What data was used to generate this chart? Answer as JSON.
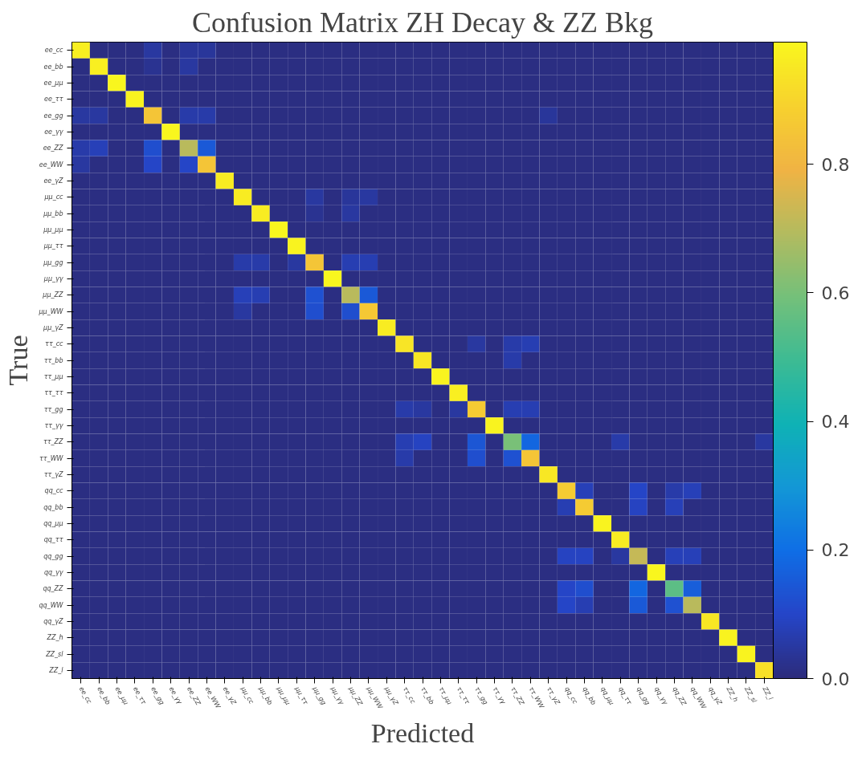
{
  "chart_data": {
    "type": "heatmap",
    "title": "Confusion Matrix ZH Decay & ZZ Bkg",
    "xlabel": "Predicted",
    "ylabel": "True",
    "categories": [
      "ee_cc",
      "ee_bb",
      "ee_μμ",
      "ee_ττ",
      "ee_gg",
      "ee_γγ",
      "ee_ZZ",
      "ee_WW",
      "ee_γZ",
      "μμ_cc",
      "μμ_bb",
      "μμ_μμ",
      "μμ_ττ",
      "μμ_gg",
      "μμ_γγ",
      "μμ_ZZ",
      "μμ_WW",
      "μμ_γZ",
      "ττ_cc",
      "ττ_bb",
      "ττ_μμ",
      "ττ_ττ",
      "ττ_gg",
      "ττ_γγ",
      "ττ_ZZ",
      "ττ_WW",
      "ττ_γZ",
      "qq_cc",
      "qq_bb",
      "qq_μμ",
      "qq_ττ",
      "qq_gg",
      "qq_γγ",
      "qq_ZZ",
      "qq_WW",
      "qq_γZ",
      "ZZ_h",
      "ZZ_sl",
      "ZZ_l"
    ],
    "y_categories": [
      "ee_cc",
      "ee_bb",
      "ee_μμ",
      "ee_ττ",
      "ee_gg",
      "ee_γγ",
      "ee_ZZ",
      "ee_WW",
      "ee_γZ",
      "μμ_cc",
      "μμ_bb",
      "μμ_μμ",
      "μμ_ττ",
      "μμ_gg",
      "μμ_γγ",
      "μμ_ZZ",
      "μμ_WW",
      "μμ_γZ",
      "ττ_cc",
      "ττ_bb",
      "ττ_μμ",
      "ττ_ττ",
      "ττ_gg",
      "ττ_γγ",
      "ττ_ZZ",
      "ττ_WW",
      "ττ_γZ",
      "qq_cc",
      "qq_bb",
      "qq_μμ",
      "qq_ττ",
      "qq_gg",
      "qq_γγ",
      "qq_ZZ",
      "qq_WW",
      "qq_γZ",
      "ZZ_h",
      "ZZ_sl",
      "ZZ_l"
    ],
    "clim": [
      0,
      0.99
    ],
    "cticks": [
      {
        "value": 0,
        "label": "0.0"
      },
      0.2,
      0.4,
      0.6,
      0.8
    ],
    "cells": [
      [
        0.97,
        0.01,
        0.01,
        0.01,
        0.05,
        0.01,
        0.04,
        0.04,
        0.01,
        0.01,
        0.01,
        0.01,
        0.01,
        0.01,
        0.01,
        0.01,
        0.01,
        0.01,
        0.01,
        0.01,
        0.01,
        0.01,
        0.01,
        0.01,
        0.01,
        0.01,
        0.01,
        0.01,
        0.01,
        0.01,
        0.01,
        0.01,
        0.01,
        0.01,
        0.01,
        0.01,
        0.01,
        0.01,
        0.01
      ],
      [
        0.01,
        0.97,
        0.01,
        0.01,
        0.03,
        0.01,
        0.05,
        0.01,
        0.01,
        0.01,
        0.01,
        0.01,
        0.01,
        0.01,
        0.01,
        0.01,
        0.01,
        0.01,
        0.01,
        0.01,
        0.01,
        0.01,
        0.01,
        0.01,
        0.01,
        0.01,
        0.01,
        0.01,
        0.01,
        0.01,
        0.01,
        0.01,
        0.01,
        0.01,
        0.01,
        0.01,
        0.01,
        0.01,
        0.01
      ],
      [
        0.01,
        0.01,
        0.99,
        0.01,
        0.01,
        0.01,
        0.01,
        0.01,
        0.01,
        0.01,
        0.01,
        0.01,
        0.01,
        0.01,
        0.01,
        0.01,
        0.01,
        0.01,
        0.01,
        0.01,
        0.01,
        0.01,
        0.01,
        0.01,
        0.01,
        0.01,
        0.01,
        0.01,
        0.01,
        0.01,
        0.01,
        0.01,
        0.01,
        0.01,
        0.01,
        0.01,
        0.01,
        0.01,
        0.01
      ],
      [
        0.01,
        0.01,
        0.01,
        0.98,
        0.01,
        0.01,
        0.01,
        0.01,
        0.01,
        0.01,
        0.01,
        0.01,
        0.01,
        0.01,
        0.01,
        0.01,
        0.01,
        0.01,
        0.01,
        0.01,
        0.01,
        0.01,
        0.01,
        0.01,
        0.01,
        0.01,
        0.01,
        0.01,
        0.01,
        0.01,
        0.01,
        0.01,
        0.01,
        0.01,
        0.01,
        0.01,
        0.01,
        0.01,
        0.01
      ],
      [
        0.05,
        0.05,
        0.01,
        0.01,
        0.85,
        0.01,
        0.06,
        0.06,
        0.01,
        0.01,
        0.01,
        0.01,
        0.01,
        0.01,
        0.01,
        0.01,
        0.01,
        0.01,
        0.01,
        0.01,
        0.01,
        0.01,
        0.01,
        0.01,
        0.01,
        0.01,
        0.04,
        0.01,
        0.01,
        0.01,
        0.01,
        0.01,
        0.01,
        0.01,
        0.01,
        0.01,
        0.01,
        0.01,
        0.01
      ],
      [
        0.01,
        0.01,
        0.01,
        0.01,
        0.01,
        0.99,
        0.01,
        0.01,
        0.01,
        0.01,
        0.01,
        0.01,
        0.01,
        0.01,
        0.01,
        0.01,
        0.01,
        0.01,
        0.01,
        0.01,
        0.01,
        0.01,
        0.01,
        0.01,
        0.01,
        0.01,
        0.01,
        0.01,
        0.01,
        0.01,
        0.01,
        0.01,
        0.01,
        0.01,
        0.01,
        0.01,
        0.01,
        0.01,
        0.01
      ],
      [
        0.06,
        0.08,
        0.01,
        0.01,
        0.12,
        0.01,
        0.7,
        0.15,
        0.01,
        0.01,
        0.01,
        0.01,
        0.01,
        0.01,
        0.01,
        0.01,
        0.01,
        0.01,
        0.01,
        0.01,
        0.01,
        0.01,
        0.01,
        0.01,
        0.01,
        0.01,
        0.01,
        0.01,
        0.01,
        0.01,
        0.01,
        0.01,
        0.01,
        0.01,
        0.01,
        0.01,
        0.01,
        0.01,
        0.01
      ],
      [
        0.05,
        0.01,
        0.01,
        0.01,
        0.1,
        0.01,
        0.1,
        0.85,
        0.01,
        0.01,
        0.01,
        0.01,
        0.01,
        0.01,
        0.01,
        0.01,
        0.01,
        0.01,
        0.01,
        0.01,
        0.01,
        0.01,
        0.01,
        0.01,
        0.01,
        0.01,
        0.01,
        0.01,
        0.01,
        0.01,
        0.01,
        0.01,
        0.01,
        0.01,
        0.01,
        0.01,
        0.01,
        0.01,
        0.01
      ],
      [
        0.01,
        0.01,
        0.01,
        0.01,
        0.01,
        0.01,
        0.01,
        0.01,
        0.96,
        0.01,
        0.01,
        0.01,
        0.01,
        0.01,
        0.01,
        0.01,
        0.01,
        0.01,
        0.01,
        0.01,
        0.01,
        0.01,
        0.01,
        0.01,
        0.01,
        0.01,
        0.01,
        0.01,
        0.01,
        0.01,
        0.01,
        0.01,
        0.01,
        0.01,
        0.01,
        0.01,
        0.01,
        0.01,
        0.01
      ],
      [
        0.01,
        0.01,
        0.01,
        0.01,
        0.01,
        0.01,
        0.01,
        0.01,
        0.01,
        0.96,
        0.01,
        0.01,
        0.01,
        0.05,
        0.01,
        0.04,
        0.05,
        0.01,
        0.01,
        0.01,
        0.01,
        0.01,
        0.01,
        0.01,
        0.01,
        0.01,
        0.01,
        0.01,
        0.01,
        0.01,
        0.01,
        0.01,
        0.01,
        0.01,
        0.01,
        0.01,
        0.01,
        0.01,
        0.01
      ],
      [
        0.01,
        0.01,
        0.01,
        0.01,
        0.01,
        0.01,
        0.01,
        0.01,
        0.01,
        0.01,
        0.96,
        0.01,
        0.01,
        0.03,
        0.01,
        0.05,
        0.01,
        0.01,
        0.01,
        0.01,
        0.01,
        0.01,
        0.01,
        0.01,
        0.01,
        0.01,
        0.01,
        0.01,
        0.01,
        0.01,
        0.01,
        0.01,
        0.01,
        0.01,
        0.01,
        0.01,
        0.01,
        0.01,
        0.01
      ],
      [
        0.01,
        0.01,
        0.01,
        0.01,
        0.01,
        0.01,
        0.01,
        0.01,
        0.01,
        0.01,
        0.01,
        0.99,
        0.01,
        0.01,
        0.01,
        0.01,
        0.01,
        0.01,
        0.01,
        0.01,
        0.01,
        0.01,
        0.01,
        0.01,
        0.01,
        0.01,
        0.01,
        0.01,
        0.01,
        0.01,
        0.01,
        0.01,
        0.01,
        0.01,
        0.01,
        0.01,
        0.01,
        0.01,
        0.01
      ],
      [
        0.01,
        0.01,
        0.01,
        0.01,
        0.01,
        0.01,
        0.01,
        0.01,
        0.01,
        0.01,
        0.01,
        0.01,
        0.98,
        0.01,
        0.01,
        0.01,
        0.01,
        0.01,
        0.01,
        0.01,
        0.01,
        0.01,
        0.01,
        0.01,
        0.01,
        0.01,
        0.01,
        0.01,
        0.01,
        0.01,
        0.01,
        0.01,
        0.01,
        0.01,
        0.01,
        0.01,
        0.01,
        0.01,
        0.01
      ],
      [
        0.01,
        0.01,
        0.01,
        0.01,
        0.01,
        0.01,
        0.01,
        0.01,
        0.01,
        0.06,
        0.06,
        0.01,
        0.05,
        0.85,
        0.01,
        0.07,
        0.07,
        0.01,
        0.01,
        0.01,
        0.01,
        0.01,
        0.01,
        0.01,
        0.01,
        0.01,
        0.01,
        0.01,
        0.01,
        0.01,
        0.01,
        0.01,
        0.01,
        0.01,
        0.01,
        0.01,
        0.01,
        0.01,
        0.01
      ],
      [
        0.01,
        0.01,
        0.01,
        0.01,
        0.01,
        0.01,
        0.01,
        0.01,
        0.01,
        0.01,
        0.01,
        0.01,
        0.01,
        0.01,
        0.99,
        0.01,
        0.01,
        0.01,
        0.01,
        0.01,
        0.01,
        0.01,
        0.01,
        0.01,
        0.01,
        0.01,
        0.01,
        0.01,
        0.01,
        0.01,
        0.01,
        0.01,
        0.01,
        0.01,
        0.01,
        0.01,
        0.01,
        0.01,
        0.01
      ],
      [
        0.01,
        0.01,
        0.01,
        0.01,
        0.01,
        0.01,
        0.01,
        0.01,
        0.01,
        0.08,
        0.07,
        0.01,
        0.01,
        0.13,
        0.01,
        0.7,
        0.15,
        0.01,
        0.01,
        0.01,
        0.01,
        0.01,
        0.01,
        0.01,
        0.01,
        0.01,
        0.01,
        0.01,
        0.01,
        0.01,
        0.01,
        0.01,
        0.01,
        0.01,
        0.01,
        0.01,
        0.01,
        0.01,
        0.01
      ],
      [
        0.01,
        0.01,
        0.01,
        0.01,
        0.01,
        0.01,
        0.01,
        0.01,
        0.01,
        0.05,
        0.01,
        0.01,
        0.01,
        0.12,
        0.01,
        0.12,
        0.86,
        0.01,
        0.01,
        0.01,
        0.01,
        0.01,
        0.01,
        0.01,
        0.01,
        0.01,
        0.01,
        0.01,
        0.01,
        0.01,
        0.01,
        0.01,
        0.01,
        0.01,
        0.01,
        0.01,
        0.01,
        0.01,
        0.01
      ],
      [
        0.01,
        0.01,
        0.01,
        0.01,
        0.01,
        0.01,
        0.01,
        0.01,
        0.01,
        0.01,
        0.01,
        0.01,
        0.01,
        0.01,
        0.01,
        0.01,
        0.01,
        0.96,
        0.01,
        0.01,
        0.01,
        0.01,
        0.01,
        0.01,
        0.01,
        0.01,
        0.01,
        0.01,
        0.01,
        0.01,
        0.01,
        0.01,
        0.01,
        0.01,
        0.01,
        0.01,
        0.01,
        0.01,
        0.01
      ],
      [
        0.01,
        0.01,
        0.01,
        0.01,
        0.01,
        0.01,
        0.01,
        0.01,
        0.01,
        0.01,
        0.01,
        0.01,
        0.01,
        0.01,
        0.01,
        0.01,
        0.01,
        0.01,
        0.94,
        0.01,
        0.01,
        0.01,
        0.05,
        0.01,
        0.06,
        0.07,
        0.01,
        0.01,
        0.01,
        0.01,
        0.01,
        0.01,
        0.01,
        0.01,
        0.01,
        0.01,
        0.01,
        0.01,
        0.01
      ],
      [
        0.01,
        0.01,
        0.01,
        0.01,
        0.01,
        0.01,
        0.01,
        0.01,
        0.01,
        0.01,
        0.01,
        0.01,
        0.01,
        0.01,
        0.01,
        0.01,
        0.01,
        0.01,
        0.01,
        0.95,
        0.01,
        0.01,
        0.01,
        0.01,
        0.06,
        0.01,
        0.01,
        0.01,
        0.01,
        0.01,
        0.01,
        0.01,
        0.01,
        0.01,
        0.01,
        0.01,
        0.01,
        0.01,
        0.01
      ],
      [
        0.01,
        0.01,
        0.01,
        0.01,
        0.01,
        0.01,
        0.01,
        0.01,
        0.01,
        0.01,
        0.01,
        0.01,
        0.01,
        0.01,
        0.01,
        0.01,
        0.01,
        0.01,
        0.01,
        0.01,
        0.98,
        0.01,
        0.01,
        0.01,
        0.01,
        0.01,
        0.01,
        0.01,
        0.01,
        0.01,
        0.01,
        0.01,
        0.01,
        0.01,
        0.01,
        0.01,
        0.01,
        0.01,
        0.01
      ],
      [
        0.01,
        0.01,
        0.01,
        0.01,
        0.01,
        0.01,
        0.01,
        0.01,
        0.01,
        0.01,
        0.01,
        0.01,
        0.01,
        0.01,
        0.01,
        0.01,
        0.01,
        0.01,
        0.01,
        0.01,
        0.01,
        0.97,
        0.01,
        0.01,
        0.01,
        0.01,
        0.01,
        0.01,
        0.01,
        0.01,
        0.01,
        0.01,
        0.01,
        0.01,
        0.01,
        0.01,
        0.01,
        0.01,
        0.01
      ],
      [
        0.01,
        0.01,
        0.01,
        0.01,
        0.01,
        0.01,
        0.01,
        0.01,
        0.01,
        0.01,
        0.01,
        0.01,
        0.01,
        0.01,
        0.01,
        0.01,
        0.01,
        0.01,
        0.06,
        0.05,
        0.01,
        0.05,
        0.87,
        0.01,
        0.07,
        0.07,
        0.01,
        0.01,
        0.01,
        0.01,
        0.01,
        0.01,
        0.01,
        0.01,
        0.01,
        0.01,
        0.01,
        0.01,
        0.01
      ],
      [
        0.01,
        0.01,
        0.01,
        0.01,
        0.01,
        0.01,
        0.01,
        0.01,
        0.01,
        0.01,
        0.01,
        0.01,
        0.01,
        0.01,
        0.01,
        0.01,
        0.01,
        0.01,
        0.01,
        0.01,
        0.01,
        0.01,
        0.01,
        0.98,
        0.01,
        0.01,
        0.01,
        0.01,
        0.01,
        0.01,
        0.01,
        0.01,
        0.01,
        0.01,
        0.01,
        0.01,
        0.01,
        0.01,
        0.01
      ],
      [
        0.01,
        0.01,
        0.01,
        0.01,
        0.01,
        0.01,
        0.01,
        0.01,
        0.01,
        0.01,
        0.01,
        0.01,
        0.01,
        0.01,
        0.01,
        0.01,
        0.01,
        0.01,
        0.07,
        0.09,
        0.01,
        0.01,
        0.14,
        0.01,
        0.6,
        0.18,
        0.01,
        0.01,
        0.01,
        0.01,
        0.06,
        0.01,
        0.01,
        0.01,
        0.01,
        0.01,
        0.01,
        0.01,
        0.05
      ],
      [
        0.01,
        0.01,
        0.01,
        0.01,
        0.01,
        0.01,
        0.01,
        0.01,
        0.01,
        0.01,
        0.01,
        0.01,
        0.01,
        0.01,
        0.01,
        0.01,
        0.01,
        0.01,
        0.06,
        0.01,
        0.01,
        0.01,
        0.12,
        0.01,
        0.13,
        0.85,
        0.01,
        0.01,
        0.01,
        0.01,
        0.01,
        0.01,
        0.01,
        0.01,
        0.01,
        0.01,
        0.01,
        0.01,
        0.01
      ],
      [
        0.01,
        0.01,
        0.01,
        0.01,
        0.01,
        0.01,
        0.01,
        0.01,
        0.01,
        0.01,
        0.01,
        0.01,
        0.01,
        0.01,
        0.01,
        0.01,
        0.01,
        0.01,
        0.01,
        0.01,
        0.01,
        0.01,
        0.01,
        0.01,
        0.01,
        0.01,
        0.95,
        0.01,
        0.01,
        0.01,
        0.01,
        0.01,
        0.01,
        0.01,
        0.01,
        0.01,
        0.01,
        0.01,
        0.01
      ],
      [
        0.01,
        0.01,
        0.01,
        0.01,
        0.01,
        0.01,
        0.01,
        0.01,
        0.01,
        0.01,
        0.01,
        0.01,
        0.01,
        0.01,
        0.01,
        0.01,
        0.01,
        0.01,
        0.01,
        0.01,
        0.01,
        0.01,
        0.01,
        0.01,
        0.01,
        0.01,
        0.01,
        0.87,
        0.08,
        0.01,
        0.01,
        0.1,
        0.01,
        0.06,
        0.08,
        0.01,
        0.01,
        0.01,
        0.01
      ],
      [
        0.01,
        0.01,
        0.01,
        0.01,
        0.01,
        0.01,
        0.01,
        0.01,
        0.01,
        0.01,
        0.01,
        0.01,
        0.01,
        0.01,
        0.01,
        0.01,
        0.01,
        0.01,
        0.01,
        0.01,
        0.01,
        0.01,
        0.01,
        0.01,
        0.01,
        0.01,
        0.01,
        0.07,
        0.87,
        0.01,
        0.01,
        0.09,
        0.01,
        0.08,
        0.01,
        0.01,
        0.01,
        0.01,
        0.01
      ],
      [
        0.01,
        0.01,
        0.01,
        0.01,
        0.01,
        0.01,
        0.01,
        0.01,
        0.01,
        0.01,
        0.01,
        0.01,
        0.01,
        0.01,
        0.01,
        0.01,
        0.01,
        0.01,
        0.01,
        0.01,
        0.01,
        0.01,
        0.01,
        0.01,
        0.01,
        0.01,
        0.01,
        0.01,
        0.01,
        0.98,
        0.01,
        0.01,
        0.01,
        0.01,
        0.01,
        0.01,
        0.01,
        0.01,
        0.01
      ],
      [
        0.01,
        0.01,
        0.01,
        0.01,
        0.01,
        0.01,
        0.01,
        0.01,
        0.01,
        0.01,
        0.01,
        0.01,
        0.01,
        0.01,
        0.01,
        0.01,
        0.01,
        0.01,
        0.01,
        0.01,
        0.01,
        0.01,
        0.01,
        0.01,
        0.01,
        0.01,
        0.01,
        0.01,
        0.01,
        0.01,
        0.96,
        0.01,
        0.01,
        0.01,
        0.01,
        0.01,
        0.01,
        0.01,
        0.01
      ],
      [
        0.01,
        0.01,
        0.01,
        0.01,
        0.01,
        0.01,
        0.01,
        0.01,
        0.01,
        0.01,
        0.01,
        0.01,
        0.01,
        0.01,
        0.01,
        0.01,
        0.01,
        0.01,
        0.01,
        0.01,
        0.01,
        0.01,
        0.01,
        0.01,
        0.01,
        0.01,
        0.01,
        0.09,
        0.09,
        0.01,
        0.05,
        0.72,
        0.01,
        0.08,
        0.08,
        0.01,
        0.01,
        0.01,
        0.01
      ],
      [
        0.01,
        0.01,
        0.01,
        0.01,
        0.01,
        0.01,
        0.01,
        0.01,
        0.01,
        0.01,
        0.01,
        0.01,
        0.01,
        0.01,
        0.01,
        0.01,
        0.01,
        0.01,
        0.01,
        0.01,
        0.01,
        0.01,
        0.01,
        0.01,
        0.01,
        0.01,
        0.01,
        0.01,
        0.01,
        0.01,
        0.01,
        0.01,
        0.99,
        0.01,
        0.01,
        0.01,
        0.01,
        0.01,
        0.01
      ],
      [
        0.01,
        0.01,
        0.01,
        0.01,
        0.01,
        0.01,
        0.01,
        0.01,
        0.01,
        0.01,
        0.01,
        0.01,
        0.01,
        0.01,
        0.01,
        0.01,
        0.01,
        0.01,
        0.01,
        0.01,
        0.01,
        0.01,
        0.01,
        0.01,
        0.01,
        0.01,
        0.01,
        0.1,
        0.12,
        0.01,
        0.01,
        0.18,
        0.01,
        0.55,
        0.16,
        0.01,
        0.01,
        0.01,
        0.01
      ],
      [
        0.01,
        0.01,
        0.01,
        0.01,
        0.01,
        0.01,
        0.01,
        0.01,
        0.01,
        0.01,
        0.01,
        0.01,
        0.01,
        0.01,
        0.01,
        0.01,
        0.01,
        0.01,
        0.01,
        0.01,
        0.01,
        0.01,
        0.01,
        0.01,
        0.01,
        0.01,
        0.01,
        0.1,
        0.07,
        0.01,
        0.01,
        0.15,
        0.01,
        0.13,
        0.7,
        0.01,
        0.01,
        0.01,
        0.01
      ],
      [
        0.01,
        0.01,
        0.01,
        0.01,
        0.01,
        0.01,
        0.01,
        0.01,
        0.01,
        0.01,
        0.01,
        0.01,
        0.01,
        0.01,
        0.01,
        0.01,
        0.01,
        0.01,
        0.01,
        0.01,
        0.01,
        0.01,
        0.01,
        0.01,
        0.01,
        0.01,
        0.01,
        0.01,
        0.01,
        0.01,
        0.01,
        0.01,
        0.01,
        0.01,
        0.01,
        0.95,
        0.01,
        0.01,
        0.01
      ],
      [
        0.01,
        0.01,
        0.01,
        0.01,
        0.01,
        0.01,
        0.01,
        0.01,
        0.01,
        0.01,
        0.01,
        0.01,
        0.01,
        0.01,
        0.01,
        0.01,
        0.01,
        0.01,
        0.01,
        0.01,
        0.01,
        0.01,
        0.01,
        0.01,
        0.01,
        0.01,
        0.01,
        0.01,
        0.01,
        0.01,
        0.01,
        0.01,
        0.01,
        0.01,
        0.01,
        0.01,
        0.98,
        0.01,
        0.01
      ],
      [
        0.01,
        0.01,
        0.01,
        0.01,
        0.01,
        0.01,
        0.01,
        0.01,
        0.01,
        0.01,
        0.01,
        0.01,
        0.01,
        0.01,
        0.01,
        0.01,
        0.01,
        0.01,
        0.01,
        0.01,
        0.01,
        0.01,
        0.01,
        0.01,
        0.01,
        0.01,
        0.01,
        0.01,
        0.01,
        0.01,
        0.01,
        0.01,
        0.01,
        0.01,
        0.01,
        0.01,
        0.01,
        0.98,
        0.01
      ],
      [
        0.01,
        0.01,
        0.01,
        0.01,
        0.01,
        0.01,
        0.01,
        0.01,
        0.01,
        0.01,
        0.01,
        0.01,
        0.01,
        0.01,
        0.01,
        0.01,
        0.01,
        0.01,
        0.01,
        0.01,
        0.01,
        0.01,
        0.01,
        0.01,
        0.01,
        0.01,
        0.01,
        0.01,
        0.01,
        0.01,
        0.01,
        0.01,
        0.01,
        0.01,
        0.01,
        0.01,
        0.01,
        0.01,
        0.93
      ]
    ]
  }
}
